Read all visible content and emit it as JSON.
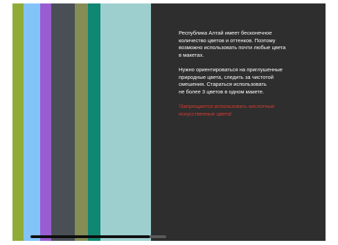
{
  "slide": {
    "palette": [
      {
        "name": "olive-green",
        "color": "#8fac39"
      },
      {
        "name": "sky-blue",
        "color": "#83c4f8"
      },
      {
        "name": "violet",
        "color": "#9a5cd2"
      },
      {
        "name": "dark-slate",
        "color": "#4a4f55"
      },
      {
        "name": "khaki",
        "color": "#858c56"
      },
      {
        "name": "teal",
        "color": "#0f8772"
      },
      {
        "name": "pale-aqua",
        "color": "#9ecfcf"
      }
    ],
    "paragraphs": {
      "p1": "Республика Алтай имеет бесконечное\nколичество цветов и оттенков. Поэтому\nвозможно использовать почти любые цвета\nв макетах.",
      "p2": "Нужно ориентироваться на приглушенные\nприродные цвета, следить за чистотой\nсмешения. Стараться использовать\nне более 3 цветов в одном макете.",
      "warning": "!Запрещается использовать кислотные\nискусственные цвета!"
    },
    "warning_color": "#d9392f",
    "scroll_position": 0.88
  }
}
